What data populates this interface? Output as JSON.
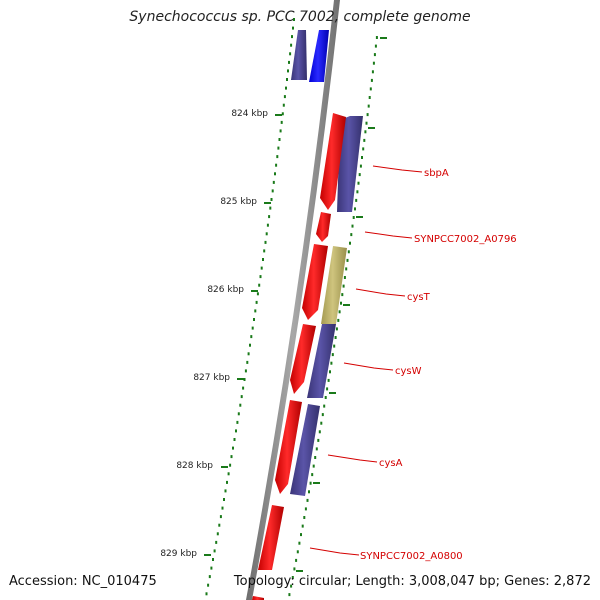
{
  "title": "Synechococcus sp. PCC 7002, complete genome",
  "footer": {
    "accession": "Accession: NC_010475",
    "summary": "Topology: circular; Length: 3,008,047 bp; Genes: 2,872"
  },
  "colors": {
    "backbone": "#888888",
    "forward_gene": "#ff0000",
    "reverse_gene": "#4b4591",
    "reverse_gene_bright": "#0000ff",
    "highlight_gene": "#b8ad62",
    "label": "#d40000",
    "gc_dots": "#1a7a1a"
  },
  "scale_labels": [
    "824 kbp",
    "825 kbp",
    "826 kbp",
    "827 kbp",
    "828 kbp",
    "829 kbp"
  ],
  "gene_labels": [
    "sbpA",
    "SYNPCC7002_A0796",
    "cysT",
    "cysW",
    "cysA",
    "SYNPCC7002_A0800"
  ]
}
